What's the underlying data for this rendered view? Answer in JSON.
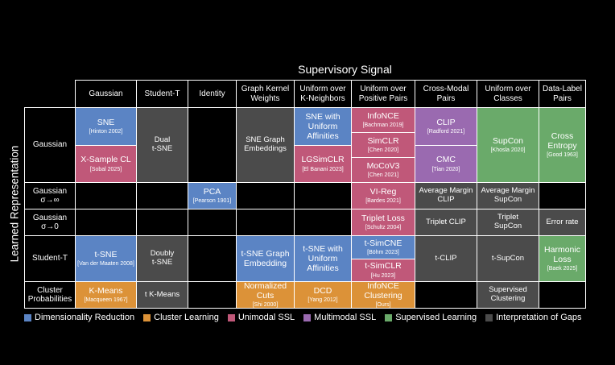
{
  "title": "Supervisory Signal",
  "ylabel": "Learned Representation",
  "colors": {
    "blue": "#5b84c4",
    "orange": "#dc9238",
    "pink": "#c05879",
    "purple": "#9a6ab0",
    "green": "#6aaa6a",
    "gray": "#4b4b4b",
    "black": "#000000"
  },
  "columns": [
    "Gaussian",
    "Student-T",
    "Identity",
    "Graph Kernel\nWeights",
    "Uniform over\nK-Neighbors",
    "Uniform over\nPositive Pairs",
    "Cross-Modal\nPairs",
    "Uniform over\nClasses",
    "Data-Label\nPairs"
  ],
  "rows": [
    [
      "Gaussian"
    ],
    [
      "Gaussian",
      "σ→∞"
    ],
    [
      "Gaussian",
      "σ→0"
    ],
    [
      "Student-T"
    ],
    [
      "Cluster",
      "Probabilities"
    ]
  ],
  "cells": [
    {
      "color": "blue",
      "text": "SNE",
      "cite": "[Hinton 2002]"
    },
    {
      "color": "pink",
      "text": "X-Sample CL",
      "cite": "[Sobal 2025]"
    },
    {
      "color": "gray",
      "text": "Dual\nt-SNE",
      "cite": ""
    },
    {
      "color": "black",
      "text": "",
      "cite": ""
    },
    {
      "color": "gray",
      "text": "SNE Graph\nEmbeddings",
      "cite": ""
    },
    {
      "color": "blue",
      "text": "SNE with\nUniform\nAffinities",
      "cite": ""
    },
    {
      "color": "pink",
      "text": "LGSimCLR",
      "cite": "[El Banani 2023]"
    },
    {
      "color": "pink",
      "text": "InfoNCE",
      "cite": "[Bachman 2019]"
    },
    {
      "color": "pink",
      "text": "SimCLR",
      "cite": "[Chen 2020]"
    },
    {
      "color": "pink",
      "text": "MoCoV3",
      "cite": "[Chen 2021]"
    },
    {
      "color": "purple",
      "text": "CLIP",
      "cite": "[Radford 2021]"
    },
    {
      "color": "purple",
      "text": "CMC",
      "cite": "[Tian 2020]"
    },
    {
      "color": "green",
      "text": "SupCon",
      "cite": "[Khosla 2020]"
    },
    {
      "color": "green",
      "text": "Cross Entropy",
      "cite": "[Good 1963]"
    },
    {
      "color": "black",
      "text": "",
      "cite": ""
    },
    {
      "color": "black",
      "text": "",
      "cite": ""
    },
    {
      "color": "blue",
      "text": "PCA",
      "cite": "[Pearson 1901]"
    },
    {
      "color": "black",
      "text": "",
      "cite": ""
    },
    {
      "color": "black",
      "text": "",
      "cite": ""
    },
    {
      "color": "pink",
      "text": "VI-Reg",
      "cite": "[Bardes 2021]"
    },
    {
      "color": "gray",
      "text": "Average Margin\nCLIP",
      "cite": ""
    },
    {
      "color": "gray",
      "text": "Average Margin\nSupCon",
      "cite": ""
    },
    {
      "color": "black",
      "text": "",
      "cite": ""
    },
    {
      "color": "black",
      "text": "",
      "cite": ""
    },
    {
      "color": "black",
      "text": "",
      "cite": ""
    },
    {
      "color": "black",
      "text": "",
      "cite": ""
    },
    {
      "color": "black",
      "text": "",
      "cite": ""
    },
    {
      "color": "black",
      "text": "",
      "cite": ""
    },
    {
      "color": "pink",
      "text": "Triplet Loss",
      "cite": "[Schultz 2004]"
    },
    {
      "color": "gray",
      "text": "Triplet CLIP",
      "cite": ""
    },
    {
      "color": "gray",
      "text": "Triplet\nSupCon",
      "cite": ""
    },
    {
      "color": "gray",
      "text": "Error rate",
      "cite": ""
    },
    {
      "color": "blue",
      "text": "t-SNE",
      "cite": "[Van der Maaten\n2008]"
    },
    {
      "color": "gray",
      "text": "Doubly\nt-SNE",
      "cite": ""
    },
    {
      "color": "black",
      "text": "",
      "cite": ""
    },
    {
      "color": "blue",
      "text": "t-SNE Graph\nEmbedding",
      "cite": ""
    },
    {
      "color": "blue",
      "text": "t-SNE with\nUniform\nAffinities",
      "cite": ""
    },
    {
      "color": "blue",
      "text": "t-SimCNE",
      "cite": "[Böhm 2023]"
    },
    {
      "color": "pink",
      "text": "t-SimCLR",
      "cite": "[Hu 2023]"
    },
    {
      "color": "gray",
      "text": "t-CLIP",
      "cite": ""
    },
    {
      "color": "gray",
      "text": "t-SupCon",
      "cite": ""
    },
    {
      "color": "green",
      "text": "Harmonic Loss",
      "cite": "[Baek 2025]"
    },
    {
      "color": "orange",
      "text": "K-Means",
      "cite": "[Macqueen 1967]"
    },
    {
      "color": "gray",
      "text": "t K-Means",
      "cite": ""
    },
    {
      "color": "black",
      "text": "",
      "cite": ""
    },
    {
      "color": "orange",
      "text": "Normalized Cuts",
      "cite": "[Shi 2000]"
    },
    {
      "color": "orange",
      "text": "DCD",
      "cite": "[Yang 2012]"
    },
    {
      "color": "orange",
      "text": "InfoNCE\nClustering",
      "cite": "[Ours]"
    },
    {
      "color": "black",
      "text": "",
      "cite": ""
    },
    {
      "color": "gray",
      "text": "Supervised\nClustering",
      "cite": ""
    },
    {
      "color": "black",
      "text": "",
      "cite": ""
    }
  ],
  "legend": [
    {
      "color": "blue",
      "label": "Dimensionality Reduction"
    },
    {
      "color": "orange",
      "label": "Cluster Learning"
    },
    {
      "color": "pink",
      "label": "Unimodal SSL"
    },
    {
      "color": "purple",
      "label": "Multimodal SSL"
    },
    {
      "color": "green",
      "label": "Supervised Learning"
    },
    {
      "color": "gray",
      "label": "Interpretation of Gaps"
    }
  ]
}
